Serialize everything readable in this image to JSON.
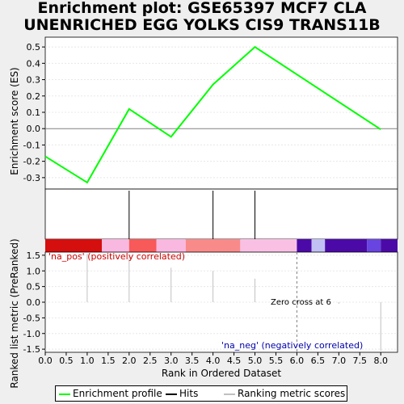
{
  "title_line1": "Enrichment plot: GSE65397 MCF7 CLA",
  "title_line2": "UNENRICHED EGG YOLKS CIS9 TRANS11B",
  "chart_data": {
    "type": "line",
    "top_panel": {
      "ylabel": "Enrichment score (ES)",
      "ylim": [
        -0.37,
        0.56
      ],
      "yticks": [
        "-0.3",
        "-0.2",
        "-0.1",
        "0.0",
        "0.1",
        "0.2",
        "0.3",
        "0.4",
        "0.5"
      ],
      "ytick_values": [
        -0.3,
        -0.2,
        -0.1,
        0.0,
        0.1,
        0.2,
        0.3,
        0.4,
        0.5
      ],
      "series": [
        {
          "name": "Enrichment profile",
          "color": "#00ff00",
          "x": [
            0.0,
            1.0,
            2.0,
            3.0,
            4.0,
            5.0,
            8.0
          ],
          "y": [
            -0.17,
            -0.33,
            0.12,
            -0.05,
            0.27,
            0.5,
            -0.005
          ]
        }
      ]
    },
    "hits": {
      "x": [
        2.0,
        4.0,
        5.0
      ],
      "color": "#000000"
    },
    "colorbar": [
      {
        "x0": 0.0,
        "x1": 1.35,
        "color": "#d50e0e"
      },
      {
        "x0": 1.35,
        "x1": 2.0,
        "color": "#f9b8e0"
      },
      {
        "x0": 2.0,
        "x1": 2.65,
        "color": "#f85959"
      },
      {
        "x0": 2.65,
        "x1": 3.35,
        "color": "#f9b8e0"
      },
      {
        "x0": 3.35,
        "x1": 4.65,
        "color": "#f98a8a"
      },
      {
        "x0": 4.65,
        "x1": 6.0,
        "color": "#f9c0e4"
      },
      {
        "x0": 6.0,
        "x1": 6.35,
        "color": "#4b0aa8"
      },
      {
        "x0": 6.35,
        "x1": 6.67,
        "color": "#c0c0f5"
      },
      {
        "x0": 6.67,
        "x1": 7.67,
        "color": "#4b0aa8"
      },
      {
        "x0": 7.67,
        "x1": 8.0,
        "color": "#6845e0"
      },
      {
        "x0": 8.0,
        "x1": 8.4,
        "color": "#4b0aa8"
      }
    ],
    "bottom_panel": {
      "ylabel": "Ranked list metric (PreRanked)",
      "ylim": [
        -1.6,
        1.6
      ],
      "yticks": [
        "-1.5",
        "-1.0",
        "-0.5",
        "0.0",
        "0.5",
        "1.0",
        "1.5"
      ],
      "ytick_values": [
        -1.5,
        -1.0,
        -0.5,
        0.0,
        0.5,
        1.0,
        1.5
      ],
      "metric_bars": {
        "x": [
          1.0,
          2.0,
          3.0,
          4.0,
          5.0,
          7.0,
          8.0
        ],
        "y": [
          1.55,
          1.45,
          1.1,
          1.0,
          0.75,
          -0.05,
          -1.55
        ]
      },
      "pos_label": "'na_pos' (positively correlated)",
      "neg_label": "'na_neg' (negatively correlated)",
      "zero_cross_label": "Zero cross at 6",
      "zero_cross_x": 6.0
    },
    "xlabel": "Rank in Ordered Dataset",
    "xlim": [
      0.0,
      8.4
    ],
    "xticks": [
      "0.0",
      "0.5",
      "1.0",
      "1.5",
      "2.0",
      "2.5",
      "3.0",
      "3.5",
      "4.0",
      "4.5",
      "5.0",
      "5.5",
      "6.0",
      "6.5",
      "7.0",
      "7.5",
      "8.0"
    ],
    "xtick_values": [
      0.0,
      0.5,
      1.0,
      1.5,
      2.0,
      2.5,
      3.0,
      3.5,
      4.0,
      4.5,
      5.0,
      5.5,
      6.0,
      6.5,
      7.0,
      7.5,
      8.0
    ]
  },
  "legend": {
    "items": [
      {
        "label": "Enrichment profile",
        "color": "#00ff00"
      },
      {
        "label": "Hits",
        "color": "#000000"
      },
      {
        "label": "Ranking metric scores",
        "color": "#c0c0c0"
      }
    ]
  }
}
